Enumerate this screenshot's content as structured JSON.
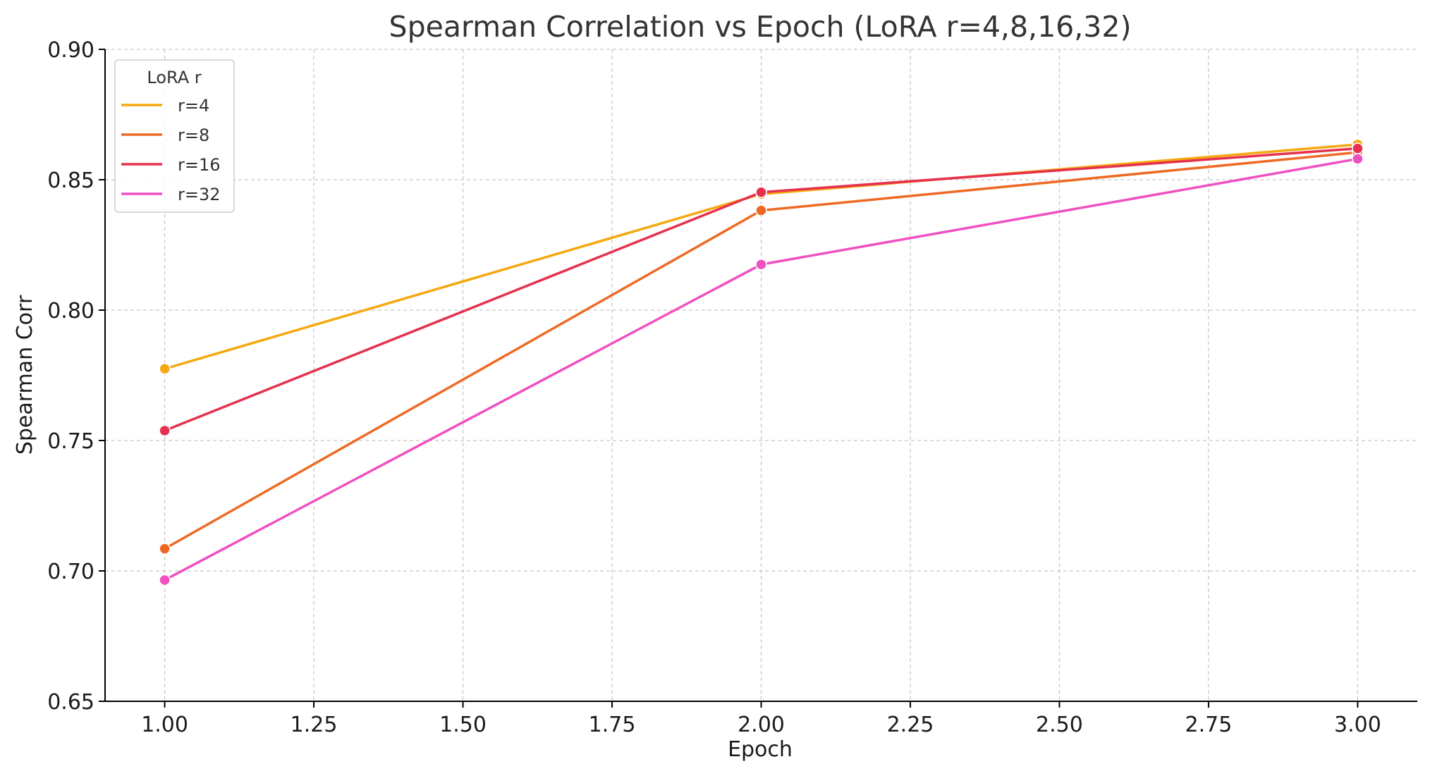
{
  "chart_data": {
    "type": "line",
    "title": "Spearman Correlation vs Epoch (LoRA r=4,8,16,32)",
    "xlabel": "Epoch",
    "ylabel": "Spearman Corr",
    "xlim": [
      0.9,
      3.1
    ],
    "ylim": [
      0.65,
      0.9
    ],
    "xticks": [
      1.0,
      1.25,
      1.5,
      1.75,
      2.0,
      2.25,
      2.5,
      2.75,
      3.0
    ],
    "xtick_labels": [
      "1.00",
      "1.25",
      "1.50",
      "1.75",
      "2.00",
      "2.25",
      "2.50",
      "2.75",
      "3.00"
    ],
    "yticks": [
      0.65,
      0.7,
      0.75,
      0.8,
      0.85,
      0.9
    ],
    "ytick_labels": [
      "0.65",
      "0.70",
      "0.75",
      "0.80",
      "0.85",
      "0.90"
    ],
    "grid": true,
    "legend": {
      "title": "LoRA r",
      "placement": "top-left"
    },
    "x": [
      1,
      2,
      3
    ],
    "series": [
      {
        "name": "r=4",
        "color": "#f5a80f",
        "values": [
          0.7775,
          0.8445,
          0.8635
        ]
      },
      {
        "name": "r=8",
        "color": "#ee6a24",
        "values": [
          0.7085,
          0.8382,
          0.8605
        ]
      },
      {
        "name": "r=16",
        "color": "#e6304e",
        "values": [
          0.7538,
          0.8452,
          0.862
        ]
      },
      {
        "name": "r=32",
        "color": "#f050c0",
        "values": [
          0.6965,
          0.8175,
          0.858
        ]
      }
    ]
  }
}
